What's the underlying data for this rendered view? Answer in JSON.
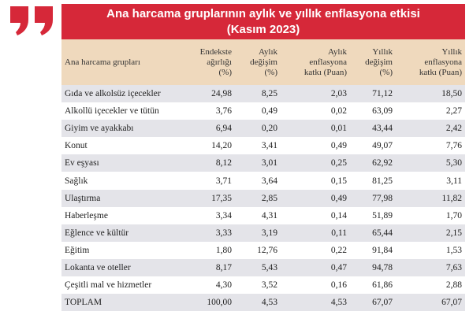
{
  "title": {
    "line1": "Ana harcama gruplarının aylık ve yıllık enflasyona etkisi",
    "line2": "(Kasım 2023)"
  },
  "table": {
    "header": [
      [
        "Ana harcama grupları"
      ],
      [
        "Endekste",
        "ağırlığı",
        "(%)"
      ],
      [
        "Aylık",
        "değişim",
        "(%)"
      ],
      [
        "Aylık",
        "enflasyona",
        "katkı (Puan)"
      ],
      [
        "Yıllık",
        "değişim",
        "(%)"
      ],
      [
        "Yıllık",
        "enflasyona",
        "katkı (Puan)"
      ]
    ],
    "rows": [
      [
        "Gıda ve alkolsüz içecekler",
        "24,98",
        "8,25",
        "2,03",
        "71,12",
        "18,50"
      ],
      [
        "Alkollü içecekler ve tütün",
        "3,76",
        "0,49",
        "0,02",
        "63,09",
        "2,27"
      ],
      [
        "Giyim ve ayakkabı",
        "6,94",
        "0,20",
        "0,01",
        "43,44",
        "2,42"
      ],
      [
        "Konut",
        "14,20",
        "3,41",
        "0,49",
        "49,07",
        "7,76"
      ],
      [
        "Ev eşyası",
        "8,12",
        "3,01",
        "0,25",
        "62,92",
        "5,30"
      ],
      [
        "Sağlık",
        "3,71",
        "3,64",
        "0,15",
        "81,25",
        "3,11"
      ],
      [
        "Ulaştırma",
        "17,35",
        "2,85",
        "0,49",
        "77,98",
        "11,82"
      ],
      [
        "Haberleşme",
        "3,34",
        "4,31",
        "0,14",
        "51,89",
        "1,70"
      ],
      [
        "Eğlence ve kültür",
        "3,33",
        "3,19",
        "0,11",
        "65,44",
        "2,15"
      ],
      [
        "Eğitim",
        "1,80",
        "12,76",
        "0,22",
        "91,84",
        "1,53"
      ],
      [
        "Lokanta ve oteller",
        "8,17",
        "5,43",
        "0,47",
        "94,78",
        "7,63"
      ],
      [
        "Çeşitli mal ve hizmetler",
        "4,30",
        "3,52",
        "0,16",
        "61,86",
        "2,88"
      ],
      [
        "TOPLAM",
        "100,00",
        "4,53",
        "4,53",
        "67,07",
        "67,07"
      ]
    ]
  }
}
